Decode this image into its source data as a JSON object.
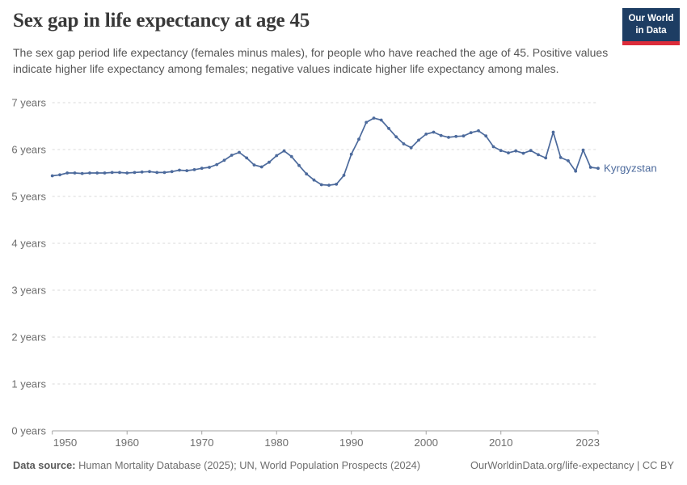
{
  "header": {
    "title": "Sex gap in life expectancy at age 45",
    "subtitle": "The sex gap period life expectancy (females minus males), for people who have reached the age of 45. Positive values indicate higher life expectancy among females; negative values indicate higher life expectancy among males.",
    "logo_line1": "Our World",
    "logo_line2": "in Data"
  },
  "chart_data": {
    "type": "line",
    "title": "Sex gap in life expectancy at age 45",
    "unit": "years",
    "xlim": [
      1950,
      2023
    ],
    "ylim": [
      0,
      7
    ],
    "grid": "horizontal-dashed",
    "legend_position": "end-of-line-label",
    "x_ticks": [
      1950,
      1960,
      1970,
      1980,
      1990,
      2000,
      2010,
      2023
    ],
    "y_ticks": [
      {
        "value": 0,
        "label": "0 years"
      },
      {
        "value": 1,
        "label": "1 years"
      },
      {
        "value": 2,
        "label": "2 years"
      },
      {
        "value": 3,
        "label": "3 years"
      },
      {
        "value": 4,
        "label": "4 years"
      },
      {
        "value": 5,
        "label": "5 years"
      },
      {
        "value": 6,
        "label": "6 years"
      },
      {
        "value": 7,
        "label": "7 years"
      }
    ],
    "series": [
      {
        "name": "Kyrgyzstan",
        "color": "#4C6A9C",
        "x": [
          1950,
          1951,
          1952,
          1953,
          1954,
          1955,
          1956,
          1957,
          1958,
          1959,
          1960,
          1961,
          1962,
          1963,
          1964,
          1965,
          1966,
          1967,
          1968,
          1969,
          1970,
          1971,
          1972,
          1973,
          1974,
          1975,
          1976,
          1977,
          1978,
          1979,
          1980,
          1981,
          1982,
          1983,
          1984,
          1985,
          1986,
          1987,
          1988,
          1989,
          1990,
          1991,
          1992,
          1993,
          1994,
          1995,
          1996,
          1997,
          1998,
          1999,
          2000,
          2001,
          2002,
          2003,
          2004,
          2005,
          2006,
          2007,
          2008,
          2009,
          2010,
          2011,
          2012,
          2013,
          2014,
          2015,
          2016,
          2017,
          2018,
          2019,
          2020,
          2021,
          2022,
          2023
        ],
        "values": [
          5.44,
          5.46,
          5.5,
          5.5,
          5.49,
          5.5,
          5.5,
          5.5,
          5.51,
          5.51,
          5.5,
          5.51,
          5.52,
          5.53,
          5.51,
          5.51,
          5.53,
          5.56,
          5.55,
          5.57,
          5.6,
          5.62,
          5.68,
          5.77,
          5.88,
          5.94,
          5.82,
          5.67,
          5.63,
          5.73,
          5.87,
          5.97,
          5.85,
          5.66,
          5.48,
          5.35,
          5.25,
          5.24,
          5.26,
          5.45,
          5.9,
          6.22,
          6.58,
          6.67,
          6.63,
          6.45,
          6.27,
          6.12,
          6.04,
          6.2,
          6.33,
          6.37,
          6.3,
          6.26,
          6.28,
          6.29,
          6.36,
          6.4,
          6.29,
          6.06,
          5.98,
          5.93,
          5.97,
          5.92,
          5.98,
          5.89,
          5.82,
          6.37,
          5.83,
          5.76,
          5.54,
          5.99,
          5.62,
          5.6
        ]
      }
    ]
  },
  "footer": {
    "source_label": "Data source:",
    "source_value": " Human Mortality Database (2025); UN, World Population Prospects (2024)",
    "link_text": "OurWorldinData.org/life-expectancy | CC BY"
  },
  "colors": {
    "accent_blue": "#4C6A9C",
    "logo_navy": "#1d3d63",
    "logo_red": "#dc2c3a",
    "grid": "#d9d9d9",
    "axis": "#a3a3a3",
    "muted_text": "#6e6e6e"
  }
}
